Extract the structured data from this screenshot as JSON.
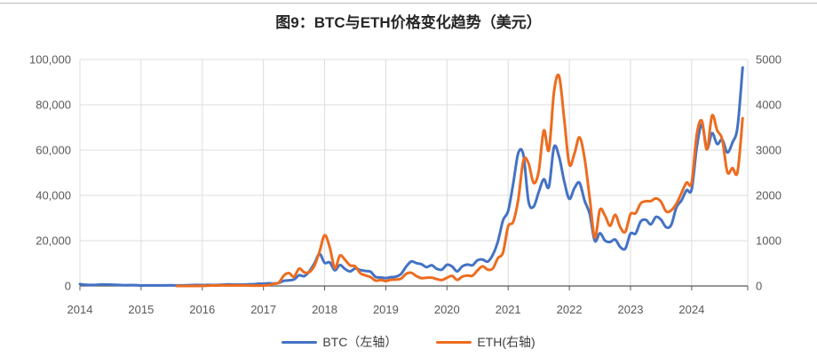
{
  "title": "图9：BTC与ETH价格变化趋势（美元）",
  "legend": [
    {
      "label": "BTC（左轴）",
      "color": "#4472C4"
    },
    {
      "label": "ETH(右轴)",
      "color": "#ED6C1F"
    }
  ],
  "chart_data": {
    "type": "line",
    "title": "图9：BTC与ETH价格变化趋势（美元）",
    "x_unit": "month",
    "x_start": "2014-01",
    "x_end": "2024-11",
    "x_tick_labels": [
      "2014",
      "2015",
      "2016",
      "2017",
      "2018",
      "2019",
      "2020",
      "2021",
      "2022",
      "2023",
      "2024"
    ],
    "grid": true,
    "legend_position": "bottom",
    "grid_color": "#dcdcdc",
    "axis_color": "#595959",
    "left_axis": {
      "min": 0,
      "max": 100000,
      "tick_labels": [
        "0",
        "20,000",
        "40,000",
        "60,000",
        "80,000",
        "100,000"
      ]
    },
    "right_axis": {
      "min": 0,
      "max": 5000,
      "tick_labels": [
        "0",
        "1000",
        "2000",
        "3000",
        "4000",
        "5000"
      ]
    },
    "series": [
      {
        "name": "BTC（左轴）",
        "axis": "left",
        "color": "#4472C4",
        "values": [
          816,
          550,
          458,
          446,
          627,
          641,
          583,
          477,
          387,
          338,
          378,
          320,
          217,
          254,
          244,
          236,
          230,
          263,
          284,
          230,
          236,
          314,
          377,
          430,
          369,
          437,
          416,
          449,
          531,
          673,
          625,
          574,
          610,
          701,
          745,
          964,
          970,
          1180,
          1080,
          1350,
          2287,
          2481,
          2875,
          4703,
          4338,
          6468,
          9947,
          14156,
          10221,
          10397,
          6938,
          9240,
          7494,
          6404,
          7736,
          7033,
          6626,
          6303,
          4017,
          3743,
          3457,
          3855,
          4105,
          5320,
          8558,
          10818,
          10085,
          9594,
          8293,
          9152,
          7556,
          7194,
          9350,
          8600,
          6439,
          8650,
          9454,
          9138,
          11351,
          11655,
          10776,
          13804,
          19700,
          28994,
          33114,
          45240,
          58789,
          57750,
          37333,
          35041,
          41460,
          47130,
          43791,
          61309,
          57006,
          46217,
          38483,
          43193,
          45539,
          37650,
          31793,
          19926,
          23303,
          20050,
          19424,
          20490,
          17168,
          16548,
          23127,
          23147,
          28465,
          29233,
          27219,
          30472,
          29230,
          25932,
          26962,
          34656,
          37718,
          42265,
          42580,
          61169,
          71333,
          60637,
          67491,
          62678,
          64619,
          58970,
          63330,
          70215,
          96450
        ]
      },
      {
        "name": "ETH(右轴)",
        "axis": "right",
        "color": "#ED6C1F",
        "values": [
          null,
          null,
          null,
          null,
          null,
          null,
          null,
          null,
          null,
          null,
          null,
          null,
          null,
          null,
          null,
          null,
          null,
          null,
          null,
          1.2,
          0.9,
          0.93,
          0.88,
          0.94,
          2.5,
          6.3,
          11.2,
          8.8,
          14.0,
          12.2,
          11.9,
          11.2,
          13.1,
          10.9,
          8.5,
          8.2,
          10.7,
          15.8,
          49.8,
          70.3,
          228.6,
          283.7,
          203.6,
          383.0,
          301.4,
          305.8,
          447.1,
          755.8,
          1118,
          855,
          396,
          670,
          577,
          454,
          433,
          283,
          233,
          197,
          118,
          133,
          107,
          137,
          141,
          162,
          268,
          291,
          218,
          173,
          181,
          183,
          152,
          130,
          180,
          223,
          134,
          206,
          231,
          226,
          346,
          434,
          360,
          386,
          616,
          738,
          1314,
          1418,
          1919,
          2772,
          2707,
          2275,
          2530,
          3433,
          3001,
          4288,
          4631,
          3683,
          2688,
          2919,
          3283,
          2816,
          1942,
          1067,
          1681,
          1554,
          1328,
          1572,
          1294,
          1196,
          1585,
          1606,
          1822,
          1871,
          1874,
          1934,
          1856,
          1645,
          1671,
          1815,
          2052,
          2281,
          2283,
          3341,
          3647,
          3014,
          3762,
          3438,
          3232,
          2513,
          2602,
          2518,
          3703
        ]
      }
    ]
  }
}
